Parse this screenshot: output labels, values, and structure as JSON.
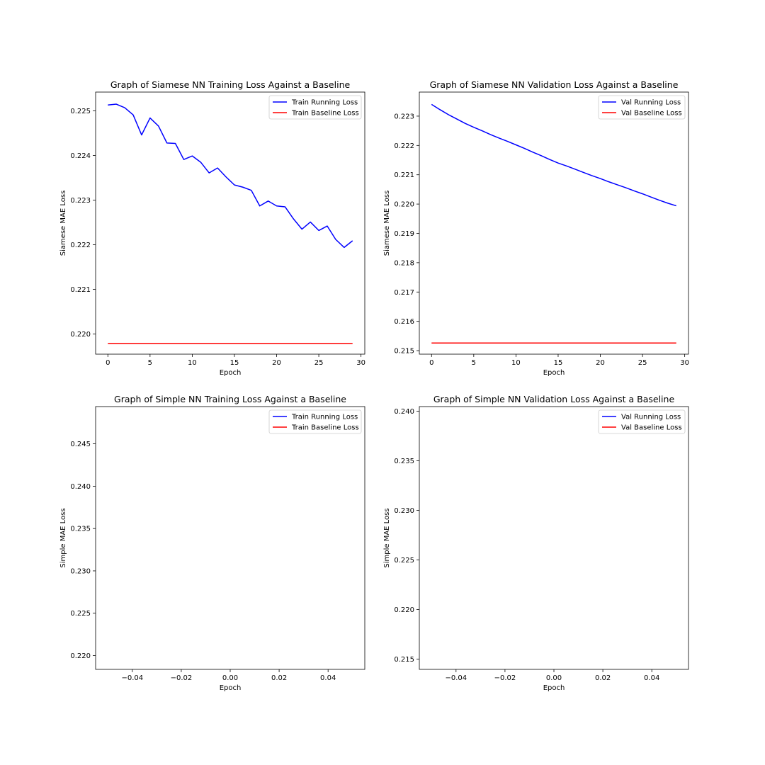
{
  "colors": {
    "running": "#0000ff",
    "baseline": "#ff0000"
  },
  "chart_data": [
    {
      "type": "line",
      "title": "Graph of Siamese NN Training Loss Against a Baseline",
      "xlabel": "Epoch",
      "ylabel": "Siamese MAE Loss",
      "xlim": [
        -1.45,
        30.45
      ],
      "ylim": [
        0.21955,
        0.22542
      ],
      "xticks": [
        0,
        5,
        10,
        15,
        20,
        25,
        30
      ],
      "xtick_labels": [
        "0",
        "5",
        "10",
        "15",
        "20",
        "25",
        "30"
      ],
      "yticks": [
        0.22,
        0.221,
        0.222,
        0.223,
        0.224,
        0.225
      ],
      "ytick_labels": [
        "0.220",
        "0.221",
        "0.222",
        "0.223",
        "0.224",
        "0.225"
      ],
      "legend_position": "top-right",
      "grid": false,
      "series": [
        {
          "name": "Train Running Loss",
          "color": "#0000ff",
          "x": [
            0,
            1,
            2,
            3,
            4,
            5,
            6,
            7,
            8,
            9,
            10,
            11,
            12,
            13,
            14,
            15,
            16,
            17,
            18,
            19,
            20,
            21,
            22,
            23,
            24,
            25,
            26,
            27,
            28,
            29
          ],
          "y": [
            0.22513,
            0.22515,
            0.22507,
            0.22491,
            0.22446,
            0.22484,
            0.22466,
            0.22428,
            0.22427,
            0.22391,
            0.22399,
            0.22385,
            0.22361,
            0.22372,
            0.22352,
            0.22334,
            0.22329,
            0.22322,
            0.22287,
            0.22298,
            0.22287,
            0.22285,
            0.22258,
            0.22235,
            0.22251,
            0.22232,
            0.22242,
            0.22212,
            0.22194,
            0.22209
          ]
        },
        {
          "name": "Train Baseline Loss",
          "color": "#ff0000",
          "x": [
            0,
            29
          ],
          "y": [
            0.21979,
            0.21979
          ]
        }
      ]
    },
    {
      "type": "line",
      "title": "Graph of Siamese NN Validation Loss Against a Baseline",
      "xlabel": "Epoch",
      "ylabel": "Siamese MAE Loss",
      "xlim": [
        -1.45,
        30.45
      ],
      "ylim": [
        0.21488,
        0.22382
      ],
      "xticks": [
        0,
        5,
        10,
        15,
        20,
        25,
        30
      ],
      "xtick_labels": [
        "0",
        "5",
        "10",
        "15",
        "20",
        "25",
        "30"
      ],
      "yticks": [
        0.215,
        0.216,
        0.217,
        0.218,
        0.219,
        0.22,
        0.221,
        0.222,
        0.223
      ],
      "ytick_labels": [
        "0.215",
        "0.216",
        "0.217",
        "0.218",
        "0.219",
        "0.220",
        "0.221",
        "0.222",
        "0.223"
      ],
      "legend_position": "top-right",
      "grid": false,
      "series": [
        {
          "name": "Val Running Loss",
          "color": "#0000ff",
          "x": [
            0,
            1,
            2,
            3,
            4,
            5,
            6,
            7,
            8,
            9,
            10,
            11,
            12,
            13,
            14,
            15,
            16,
            17,
            18,
            19,
            20,
            21,
            22,
            23,
            24,
            25,
            26,
            27,
            28,
            29
          ],
          "y": [
            0.2234,
            0.22322,
            0.22305,
            0.2229,
            0.22275,
            0.22262,
            0.2225,
            0.22237,
            0.22225,
            0.22214,
            0.22202,
            0.2219,
            0.22177,
            0.22165,
            0.22152,
            0.2214,
            0.2213,
            0.22119,
            0.22108,
            0.22097,
            0.22087,
            0.22076,
            0.22066,
            0.22056,
            0.22045,
            0.22035,
            0.22024,
            0.22013,
            0.22003,
            0.21994
          ]
        },
        {
          "name": "Val Baseline Loss",
          "color": "#ff0000",
          "x": [
            0,
            29
          ],
          "y": [
            0.21526,
            0.21526
          ]
        }
      ]
    },
    {
      "type": "line",
      "title": "Graph of Simple NN Training Loss Against a Baseline",
      "xlabel": "Epoch",
      "ylabel": "Simple MAE Loss",
      "xlim": [
        -0.055,
        0.055
      ],
      "ylim": [
        0.21837,
        0.2494
      ],
      "xticks": [
        -0.04,
        -0.02,
        0.0,
        0.02,
        0.04
      ],
      "xtick_labels": [
        "−0.04",
        "−0.02",
        "0.00",
        "0.02",
        "0.04"
      ],
      "yticks": [
        0.22,
        0.225,
        0.23,
        0.235,
        0.24,
        0.245
      ],
      "ytick_labels": [
        "0.220",
        "0.225",
        "0.230",
        "0.235",
        "0.240",
        "0.245"
      ],
      "legend_position": "top-right",
      "grid": false,
      "series": [
        {
          "name": "Train Running Loss",
          "color": "#0000ff",
          "x": [],
          "y": []
        },
        {
          "name": "Train Baseline Loss",
          "color": "#ff0000",
          "x": [],
          "y": []
        }
      ]
    },
    {
      "type": "line",
      "title": "Graph of Simple NN Validation Loss Against a Baseline",
      "xlabel": "Epoch",
      "ylabel": "Simple MAE Loss",
      "xlim": [
        -0.055,
        0.055
      ],
      "ylim": [
        0.21396,
        0.24046
      ],
      "xticks": [
        -0.04,
        -0.02,
        0.0,
        0.02,
        0.04
      ],
      "xtick_labels": [
        "−0.04",
        "−0.02",
        "0.00",
        "0.02",
        "0.04"
      ],
      "yticks": [
        0.215,
        0.22,
        0.225,
        0.23,
        0.235,
        0.24
      ],
      "ytick_labels": [
        "0.215",
        "0.220",
        "0.225",
        "0.230",
        "0.235",
        "0.240"
      ],
      "legend_position": "top-right",
      "grid": false,
      "series": [
        {
          "name": "Val Running Loss",
          "color": "#0000ff",
          "x": [],
          "y": []
        },
        {
          "name": "Val Baseline Loss",
          "color": "#ff0000",
          "x": [],
          "y": []
        }
      ]
    }
  ]
}
